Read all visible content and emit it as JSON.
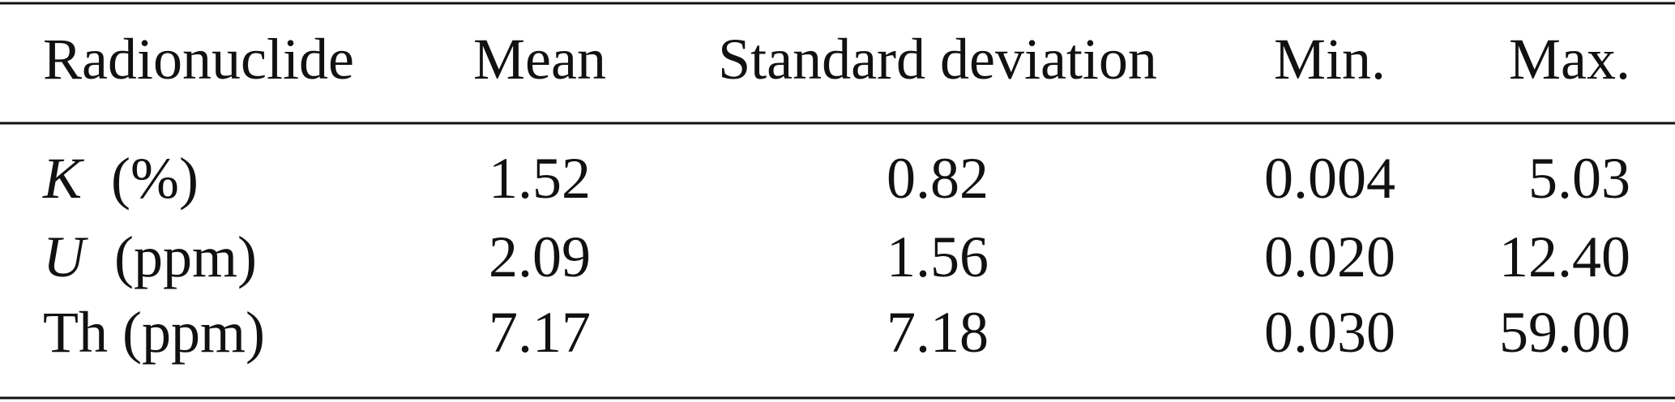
{
  "table": {
    "header": [
      "Radionuclide",
      "Mean",
      "Standard deviation",
      "Min.",
      "Max."
    ],
    "rows": [
      [
        {
          "symbol": "K",
          "italic": true,
          "unit": "(%)"
        },
        "1.52",
        "0.82",
        "0.004",
        "5.03"
      ],
      [
        {
          "symbol": "U",
          "italic": true,
          "unit": "(ppm)"
        },
        "2.09",
        "1.56",
        "0.020",
        "12.40"
      ],
      [
        {
          "symbol": "Th",
          "italic": false,
          "unit": "(ppm)"
        },
        "7.17",
        "7.18",
        "0.030",
        "59.00"
      ]
    ]
  }
}
